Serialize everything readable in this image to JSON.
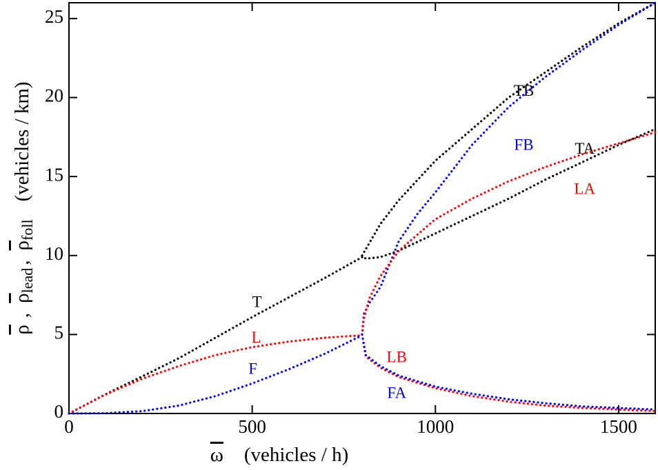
{
  "chart_data": {
    "type": "line",
    "xlabel_parts": [
      "ω",
      "(vehicles / h)"
    ],
    "ylabel_parts": [
      "ρ",
      ",",
      "ρ",
      "lead",
      ",",
      "ρ",
      "foll",
      "(vehicles / km)"
    ],
    "xlim": [
      0,
      1600
    ],
    "xticks": [
      0,
      500,
      1000,
      1500
    ],
    "ylim": [
      0,
      26
    ],
    "yticks": [
      0,
      5,
      10,
      15,
      20,
      25
    ],
    "series": [
      {
        "name": "T",
        "color": "#000000",
        "x": [
          0,
          100,
          200,
          300,
          400,
          500,
          600,
          700,
          800
        ],
        "values": [
          0,
          1.22,
          2.35,
          3.5,
          4.8,
          6.1,
          7.35,
          8.6,
          9.9
        ]
      },
      {
        "name": "L",
        "color": "#ff0000",
        "x": [
          0,
          100,
          200,
          300,
          400,
          500,
          600,
          700,
          800
        ],
        "values": [
          0,
          1.2,
          2.2,
          3.0,
          3.7,
          4.2,
          4.55,
          4.8,
          4.95
        ]
      },
      {
        "name": "F",
        "color": "#0000ff",
        "x": [
          0,
          100,
          200,
          300,
          400,
          500,
          600,
          700,
          800
        ],
        "values": [
          0,
          0.02,
          0.15,
          0.5,
          1.1,
          1.9,
          2.8,
          3.8,
          4.95
        ]
      },
      {
        "name": "TB",
        "color": "#000000",
        "x": [
          800,
          850,
          900,
          1000,
          1100,
          1200,
          1300,
          1400,
          1500,
          1600
        ],
        "values": [
          10,
          12,
          13.5,
          16,
          18,
          20,
          21.6,
          23.2,
          24.7,
          26
        ]
      },
      {
        "name": "FB",
        "color": "#0000ff",
        "x": [
          800,
          805,
          820,
          850,
          900,
          950,
          1000,
          1100,
          1200,
          1300,
          1400,
          1500,
          1600
        ],
        "values": [
          5,
          6.3,
          7,
          8,
          10.9,
          12.6,
          14,
          17,
          19.4,
          21.3,
          23,
          24.6,
          26
        ]
      },
      {
        "name": "TA",
        "color": "#000000",
        "x": [
          800,
          810,
          850,
          900,
          1000,
          1100,
          1200,
          1300,
          1400,
          1500,
          1600
        ],
        "values": [
          10,
          9.8,
          9.9,
          10.3,
          11.4,
          12.5,
          13.6,
          14.8,
          15.9,
          17,
          18
        ]
      },
      {
        "name": "LA",
        "color": "#ff0000",
        "x": [
          800,
          805,
          820,
          850,
          900,
          1000,
          1100,
          1200,
          1300,
          1400,
          1500,
          1600
        ],
        "values": [
          5,
          6,
          7.3,
          8.7,
          10.3,
          12.3,
          13.6,
          14.7,
          15.6,
          16.4,
          17.1,
          17.8
        ]
      },
      {
        "name": "LB",
        "color": "#ff0000",
        "x": [
          800,
          810,
          850,
          900,
          1000,
          1100,
          1200,
          1300,
          1400,
          1500,
          1600
        ],
        "values": [
          5,
          3.6,
          2.9,
          2.3,
          1.6,
          1.1,
          0.75,
          0.5,
          0.35,
          0.25,
          0.15
        ]
      },
      {
        "name": "FA",
        "color": "#0000ff",
        "x": [
          800,
          810,
          850,
          900,
          1000,
          1100,
          1200,
          1300,
          1400,
          1500,
          1600
        ],
        "values": [
          5,
          3.7,
          3,
          2.4,
          1.7,
          1.25,
          0.9,
          0.65,
          0.45,
          0.35,
          0.25
        ]
      }
    ]
  }
}
